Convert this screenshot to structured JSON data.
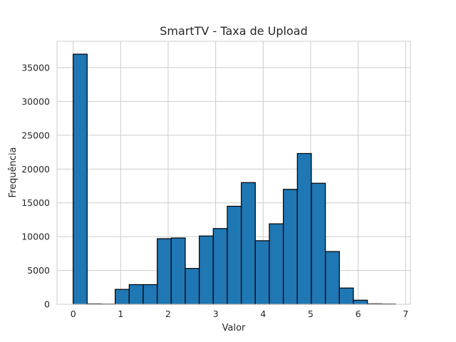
{
  "chart_data": {
    "type": "bar",
    "title": "SmartTV - Taxa de Upload",
    "xlabel": "Valor",
    "ylabel": "Frequência",
    "xlim": [
      -0.34,
      7.1
    ],
    "ylim": [
      0,
      38900
    ],
    "xticks": [
      "0",
      "1",
      "2",
      "3",
      "4",
      "5",
      "6",
      "7"
    ],
    "yticks": [
      "0",
      "5000",
      "10000",
      "15000",
      "20000",
      "25000",
      "30000",
      "35000"
    ],
    "grid": true,
    "bin_edges": [
      0,
      0.295,
      0.59,
      0.885,
      1.18,
      1.475,
      1.77,
      2.065,
      2.36,
      2.655,
      2.95,
      3.245,
      3.54,
      3.835,
      4.13,
      4.425,
      4.72,
      5.015,
      5.31,
      5.605,
      5.9,
      6.195,
      6.49,
      6.785
    ],
    "values": [
      37000,
      60,
      30,
      2200,
      2900,
      2900,
      9700,
      9800,
      5300,
      10100,
      11200,
      14500,
      18000,
      9400,
      11900,
      17000,
      22300,
      17900,
      7800,
      2400,
      600,
      70,
      40
    ]
  }
}
